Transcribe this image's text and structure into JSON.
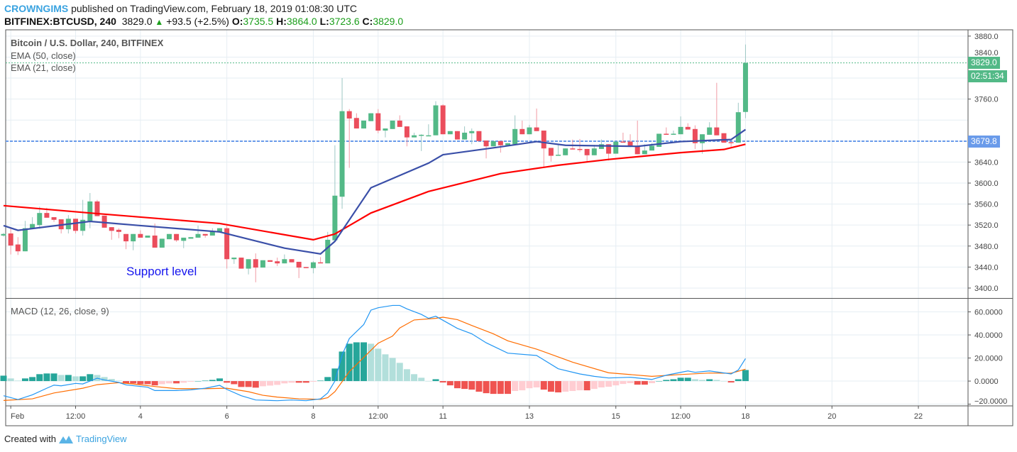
{
  "header": {
    "author": "CROWNGIMS",
    "published": "published on TradingView.com, February 18, 2019 01:08:30 UTC",
    "symbol": "BITFINEX:BTCUSD, 240",
    "last": "3829.0",
    "change": "+93.5 (+2.5%)",
    "o_label": "O:",
    "o": "3735.5",
    "h_label": "H:",
    "h": "3864.0",
    "l_label": "L:",
    "l": "3723.6",
    "c_label": "C:",
    "c": "3829.0"
  },
  "legend": {
    "title": "Bitcoin / U.S. Dollar, 240, BITFINEX",
    "ema50": "EMA (50, close)",
    "ema21": "EMA (21, close)",
    "macd": "MACD (12, 26, close, 9)"
  },
  "annotation": "Support level",
  "badges": {
    "last_price": "3829.0",
    "countdown": "02:51:34",
    "line_price": "3679.8"
  },
  "footer": {
    "created": "Created with",
    "brand": "TradingView"
  },
  "colors": {
    "up": "#53b987",
    "down": "#eb4d5c",
    "ema21": "#3a4fa8",
    "ema50": "#ff0000",
    "macd": "#2196f3",
    "signal": "#ff6d00",
    "hist_up_strong": "#26a69a",
    "hist_up_weak": "#b2dfdb",
    "hist_down_strong": "#ef5350",
    "hist_down_weak": "#ffcdd2",
    "line_price": "#6a9bea",
    "last_price": "#53b987"
  },
  "chart_data": [
    {
      "type": "candlestick",
      "interval": "240",
      "ylim": [
        3381,
        3892
      ],
      "y_ticks": [
        3400,
        3440,
        3480,
        3520,
        3560,
        3600,
        3640,
        3760,
        3840,
        3880
      ],
      "y_tick_labels": [
        "3400.0",
        "3440.0",
        "3480.0",
        "3520.0",
        "3560.0",
        "3600.0",
        "3640.0",
        "3760.0",
        "3840.0",
        "3880.0"
      ],
      "x_ticks": [
        "Feb",
        "12:00",
        "4",
        "6",
        "8",
        "12:00",
        "11",
        "13",
        "15",
        "12:00",
        "18",
        "20",
        "22"
      ],
      "horizontal_lines": [
        3829.0,
        3679.8
      ],
      "ohlc": [
        [
          3500,
          3505,
          3498,
          3503
        ],
        [
          3504,
          3514,
          3464,
          3481
        ],
        [
          3483,
          3497,
          3463,
          3470
        ],
        [
          3470,
          3528,
          3470,
          3514
        ],
        [
          3513,
          3535,
          3513,
          3522
        ],
        [
          3520,
          3555,
          3513,
          3543
        ],
        [
          3543,
          3553,
          3534,
          3534
        ],
        [
          3535,
          3535,
          3526,
          3530
        ],
        [
          3531,
          3531,
          3504,
          3512
        ],
        [
          3512,
          3539,
          3504,
          3532
        ],
        [
          3532,
          3532,
          3504,
          3509
        ],
        [
          3509,
          3568,
          3500,
          3530
        ],
        [
          3528,
          3581,
          3514,
          3565
        ],
        [
          3565,
          3568,
          3537,
          3537
        ],
        [
          3538,
          3538,
          3515,
          3515
        ],
        [
          3516,
          3516,
          3492,
          3509
        ],
        [
          3511,
          3514,
          3495,
          3507
        ],
        [
          3503,
          3503,
          3474,
          3489
        ],
        [
          3489,
          3503,
          3472,
          3503
        ],
        [
          3503,
          3510,
          3496,
          3496
        ],
        [
          3496,
          3500,
          3496,
          3500
        ],
        [
          3500,
          3523,
          3477,
          3477
        ],
        [
          3477,
          3494,
          3477,
          3494
        ],
        [
          3493,
          3503,
          3493,
          3503
        ],
        [
          3503,
          3503,
          3488,
          3491
        ],
        [
          3490,
          3496,
          3476,
          3496
        ],
        [
          3494,
          3497,
          3494,
          3497
        ],
        [
          3496,
          3519,
          3496,
          3503
        ],
        [
          3503,
          3503,
          3496,
          3500
        ],
        [
          3500,
          3514,
          3500,
          3508
        ],
        [
          3507,
          3514,
          3507,
          3514
        ],
        [
          3514,
          3520,
          3437,
          3455
        ],
        [
          3455,
          3458,
          3446,
          3458
        ],
        [
          3458,
          3458,
          3437,
          3437
        ],
        [
          3437,
          3455,
          3426,
          3455
        ],
        [
          3455,
          3466,
          3411,
          3439
        ],
        [
          3439,
          3453,
          3439,
          3453
        ],
        [
          3453,
          3453,
          3450,
          3450
        ],
        [
          3451,
          3458,
          3442,
          3447
        ],
        [
          3447,
          3464,
          3447,
          3455
        ],
        [
          3455,
          3455,
          3449,
          3449
        ],
        [
          3450,
          3450,
          3419,
          3439
        ],
        [
          3440,
          3440,
          3438,
          3438
        ],
        [
          3438,
          3451,
          3428,
          3449
        ],
        [
          3449,
          3459,
          3448,
          3448
        ],
        [
          3447,
          3507,
          3447,
          3492
        ],
        [
          3491,
          3672,
          3491,
          3576
        ],
        [
          3574,
          3800,
          3551,
          3737
        ],
        [
          3737,
          3741,
          3629,
          3723
        ],
        [
          3724,
          3733,
          3704,
          3704
        ],
        [
          3704,
          3719,
          3704,
          3719
        ],
        [
          3718,
          3733,
          3718,
          3733
        ],
        [
          3733,
          3741,
          3695,
          3700
        ],
        [
          3700,
          3704,
          3687,
          3704
        ],
        [
          3703,
          3719,
          3703,
          3719
        ],
        [
          3719,
          3729,
          3707,
          3707
        ],
        [
          3708,
          3708,
          3670,
          3687
        ],
        [
          3687,
          3696,
          3687,
          3691
        ],
        [
          3690,
          3693,
          3661,
          3692
        ],
        [
          3690,
          3712,
          3690,
          3691
        ],
        [
          3691,
          3756,
          3691,
          3748
        ],
        [
          3748,
          3750,
          3693,
          3693
        ],
        [
          3693,
          3699,
          3693,
          3699
        ],
        [
          3699,
          3699,
          3683,
          3683
        ],
        [
          3683,
          3708,
          3683,
          3696
        ],
        [
          3695,
          3704,
          3674,
          3699
        ],
        [
          3699,
          3699,
          3680,
          3680
        ],
        [
          3681,
          3681,
          3647,
          3670
        ],
        [
          3670,
          3680,
          3670,
          3680
        ],
        [
          3680,
          3680,
          3658,
          3672
        ],
        [
          3672,
          3676,
          3672,
          3676
        ],
        [
          3674,
          3729,
          3674,
          3703
        ],
        [
          3703,
          3719,
          3693,
          3693
        ],
        [
          3693,
          3711,
          3693,
          3706
        ],
        [
          3706,
          3742,
          3699,
          3699
        ],
        [
          3700,
          3700,
          3631,
          3666
        ],
        [
          3667,
          3667,
          3641,
          3652
        ],
        [
          3652,
          3674,
          3652,
          3654
        ],
        [
          3653,
          3666,
          3653,
          3666
        ],
        [
          3666,
          3683,
          3664,
          3664
        ],
        [
          3665,
          3684,
          3659,
          3664
        ],
        [
          3665,
          3665,
          3641,
          3653
        ],
        [
          3653,
          3673,
          3653,
          3666
        ],
        [
          3665,
          3683,
          3665,
          3674
        ],
        [
          3674,
          3674,
          3643,
          3656
        ],
        [
          3656,
          3679,
          3656,
          3679
        ],
        [
          3679,
          3696,
          3677,
          3677
        ],
        [
          3679,
          3693,
          3670,
          3670
        ],
        [
          3671,
          3719,
          3655,
          3655
        ],
        [
          3655,
          3674,
          3655,
          3662
        ],
        [
          3662,
          3676,
          3662,
          3671
        ],
        [
          3669,
          3694,
          3669,
          3694
        ],
        [
          3694,
          3706,
          3692,
          3692
        ],
        [
          3692,
          3700,
          3692,
          3694
        ],
        [
          3693,
          3727,
          3693,
          3707
        ],
        [
          3707,
          3714,
          3702,
          3702
        ],
        [
          3703,
          3710,
          3665,
          3676
        ],
        [
          3676,
          3693,
          3656,
          3693
        ],
        [
          3692,
          3716,
          3692,
          3706
        ],
        [
          3706,
          3791,
          3691,
          3691
        ],
        [
          3695,
          3695,
          3677,
          3677
        ],
        [
          3678,
          3678,
          3668,
          3677
        ],
        [
          3677,
          3753,
          3677,
          3735
        ],
        [
          3735.5,
          3864,
          3723.6,
          3829
        ]
      ],
      "ema21": [
        [
          0,
          3519
        ],
        [
          2,
          3510
        ],
        [
          12,
          3527
        ],
        [
          19,
          3519
        ],
        [
          30,
          3507
        ],
        [
          39,
          3476
        ],
        [
          44,
          3465
        ],
        [
          46,
          3489
        ],
        [
          51,
          3591
        ],
        [
          59,
          3638
        ],
        [
          61,
          3654
        ],
        [
          69,
          3669
        ],
        [
          74,
          3679
        ],
        [
          78,
          3672
        ],
        [
          88,
          3670
        ],
        [
          94,
          3679
        ],
        [
          101,
          3683
        ],
        [
          103,
          3702
        ]
      ],
      "ema50": [
        [
          0,
          3557
        ],
        [
          12,
          3543
        ],
        [
          30,
          3523
        ],
        [
          43,
          3492
        ],
        [
          46,
          3503
        ],
        [
          51,
          3543
        ],
        [
          59,
          3584
        ],
        [
          69,
          3618
        ],
        [
          77,
          3634
        ],
        [
          84,
          3645
        ],
        [
          94,
          3658
        ],
        [
          100,
          3664
        ],
        [
          103,
          3674
        ]
      ]
    },
    {
      "type": "macd",
      "ylim": [
        -21.5,
        71.4
      ],
      "y_ticks": [
        -20,
        0,
        20,
        40,
        60
      ],
      "y_tick_labels": [
        "−20.0000",
        "0.0000",
        "20.0000",
        "40.0000",
        "60.0000"
      ],
      "histogram": [
        4.7,
        2.3,
        0.4,
        2.3,
        3.5,
        6,
        6.6,
        6.6,
        5.3,
        5.3,
        4.1,
        4.1,
        6,
        5.3,
        3.5,
        1.8,
        0.4,
        -2,
        -2,
        -2.7,
        -2.7,
        -3.7,
        -2.7,
        -2,
        -2,
        -1.4,
        -0.6,
        0,
        0.4,
        1,
        2.3,
        -1.4,
        -2.7,
        -5.1,
        -5.1,
        -5.7,
        -4.5,
        -3.9,
        -3.3,
        -2,
        -1.4,
        -1.4,
        -1.4,
        -0.6,
        0.4,
        3.5,
        10.9,
        25.6,
        32.4,
        33.6,
        33.6,
        32.4,
        28.1,
        23.2,
        20.1,
        15.8,
        10.3,
        6,
        2.9,
        0,
        1.6,
        -1.2,
        -3.7,
        -6.2,
        -6.8,
        -7.4,
        -9.2,
        -10.5,
        -11.1,
        -11.1,
        -11.1,
        -8.6,
        -8,
        -6.2,
        -5.5,
        -7.4,
        -9.2,
        -9.8,
        -9.2,
        -8.6,
        -8,
        -8,
        -6.8,
        -5.5,
        -4.9,
        -3.7,
        -2.5,
        -1.8,
        -3.1,
        -3.1,
        -1.8,
        0,
        1,
        1.6,
        2.9,
        2.9,
        1.6,
        1,
        1.6,
        1,
        0,
        -1.2,
        1.6,
        9.6
      ],
      "macd": [
        [
          0,
          -12.7
        ],
        [
          2,
          -16
        ],
        [
          4,
          -11.9
        ],
        [
          6,
          -6.2
        ],
        [
          7,
          -3.5
        ],
        [
          8,
          -4.1
        ],
        [
          10,
          -2
        ],
        [
          11,
          -2.5
        ],
        [
          12,
          0
        ],
        [
          13,
          2.5
        ],
        [
          14,
          1
        ],
        [
          16,
          -1.2
        ],
        [
          17,
          -3.3
        ],
        [
          20,
          -5.3
        ],
        [
          21,
          -8.2
        ],
        [
          24,
          -8.2
        ],
        [
          26,
          -7.6
        ],
        [
          28,
          -6.2
        ],
        [
          30,
          -3.7
        ],
        [
          31,
          -7.2
        ],
        [
          33,
          -12.7
        ],
        [
          35,
          -16.4
        ],
        [
          38,
          -17
        ],
        [
          40,
          -16.4
        ],
        [
          42,
          -17
        ],
        [
          44,
          -15.4
        ],
        [
          45,
          -10.3
        ],
        [
          46,
          0
        ],
        [
          47,
          22.6
        ],
        [
          48,
          36.9
        ],
        [
          50,
          49
        ],
        [
          51,
          61.5
        ],
        [
          52,
          63.6
        ],
        [
          54,
          65.6
        ],
        [
          55,
          65.6
        ],
        [
          56,
          62.6
        ],
        [
          58,
          57.8
        ],
        [
          59,
          54.4
        ],
        [
          60,
          56.2
        ],
        [
          62,
          49.2
        ],
        [
          63,
          45.7
        ],
        [
          65,
          41
        ],
        [
          67,
          33.2
        ],
        [
          70,
          24.2
        ],
        [
          74,
          22.2
        ],
        [
          77,
          10.7
        ],
        [
          80,
          6.2
        ],
        [
          82,
          4.1
        ],
        [
          84,
          2.7
        ],
        [
          87,
          3.3
        ],
        [
          90,
          1.4
        ],
        [
          92,
          5.1
        ],
        [
          95,
          8.8
        ],
        [
          96,
          7.6
        ],
        [
          98,
          8.8
        ],
        [
          101,
          6.2
        ],
        [
          102,
          9.6
        ],
        [
          103,
          19.5
        ]
      ],
      "signal": [
        [
          0,
          -16.8
        ],
        [
          4,
          -15.4
        ],
        [
          7,
          -10.3
        ],
        [
          11,
          -6.2
        ],
        [
          13,
          -3.1
        ],
        [
          16,
          -1.4
        ],
        [
          18,
          -2.5
        ],
        [
          21,
          -4.7
        ],
        [
          24,
          -6.6
        ],
        [
          28,
          -6.6
        ],
        [
          31,
          -6.2
        ],
        [
          34,
          -9.2
        ],
        [
          36,
          -12.3
        ],
        [
          38,
          -13.9
        ],
        [
          41,
          -15.4
        ],
        [
          44,
          -15.8
        ],
        [
          45,
          -14.4
        ],
        [
          46,
          -9.2
        ],
        [
          48,
          8.2
        ],
        [
          50,
          20.5
        ],
        [
          52,
          32.8
        ],
        [
          54,
          39
        ],
        [
          55,
          46
        ],
        [
          57,
          53
        ],
        [
          60,
          54.4
        ],
        [
          61,
          55.4
        ],
        [
          63,
          53.3
        ],
        [
          65,
          48.2
        ],
        [
          68,
          41
        ],
        [
          70,
          34.9
        ],
        [
          74,
          27.7
        ],
        [
          79,
          16.4
        ],
        [
          84,
          7.2
        ],
        [
          90,
          4.1
        ],
        [
          94,
          5.7
        ],
        [
          98,
          7
        ],
        [
          101,
          6.8
        ],
        [
          103,
          10.3
        ]
      ]
    }
  ]
}
